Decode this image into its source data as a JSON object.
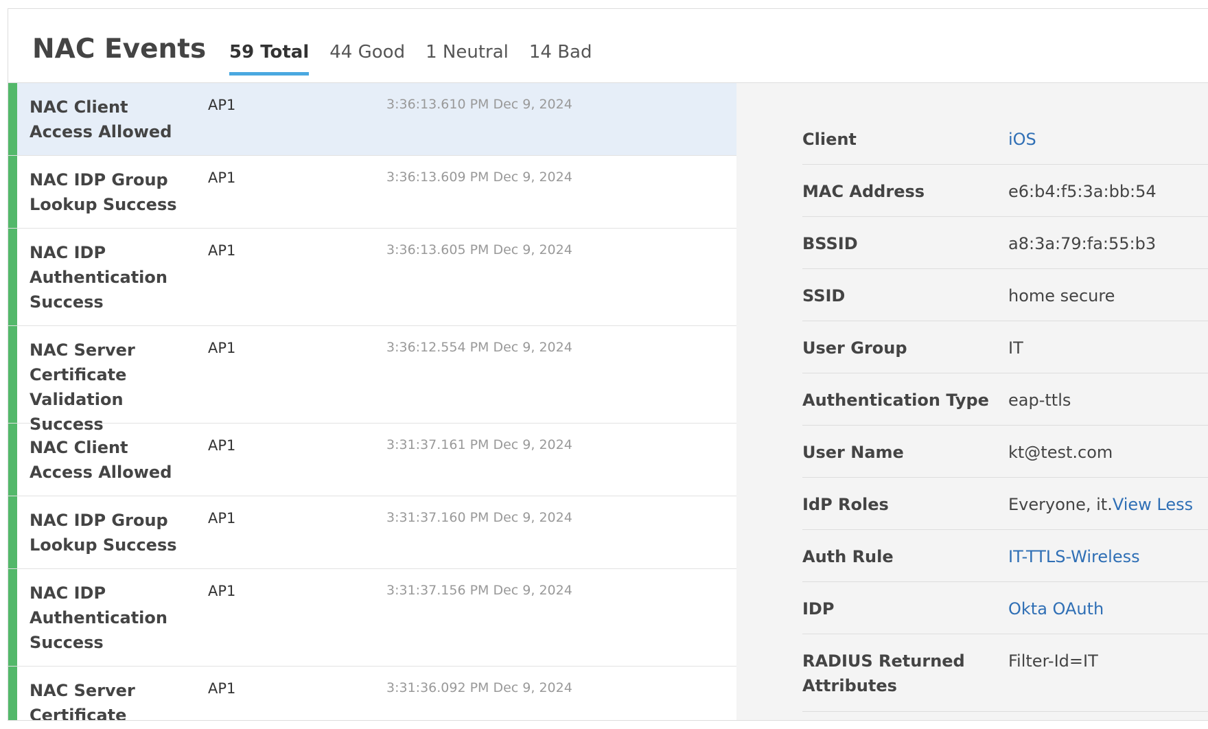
{
  "header": {
    "title": "NAC Events",
    "tabs": [
      "59 Total",
      "44 Good",
      "1 Neutral",
      "14 Bad"
    ]
  },
  "events": [
    {
      "name": "NAC Client Access Allowed",
      "ap": "AP1",
      "time": "3:36:13.610 PM Dec 9, 2024"
    },
    {
      "name": "NAC IDP Group Lookup Success",
      "ap": "AP1",
      "time": "3:36:13.609 PM Dec 9, 2024"
    },
    {
      "name": "NAC IDP Authentication Success",
      "ap": "AP1",
      "time": "3:36:13.605 PM Dec 9, 2024"
    },
    {
      "name": "NAC Server Certificate Validation Success",
      "ap": "AP1",
      "time": "3:36:12.554 PM Dec 9, 2024"
    },
    {
      "name": "NAC Client Access Allowed",
      "ap": "AP1",
      "time": "3:31:37.161 PM Dec 9, 2024"
    },
    {
      "name": "NAC IDP Group Lookup Success",
      "ap": "AP1",
      "time": "3:31:37.160 PM Dec 9, 2024"
    },
    {
      "name": "NAC IDP Authentication Success",
      "ap": "AP1",
      "time": "3:31:37.156 PM Dec 9, 2024"
    },
    {
      "name": "NAC Server Certificate",
      "ap": "AP1",
      "time": "3:31:36.092 PM Dec 9, 2024"
    }
  ],
  "details": [
    {
      "label": "Client",
      "value": "iOS",
      "link": true
    },
    {
      "label": "MAC Address",
      "value": "e6:b4:f5:3a:bb:54"
    },
    {
      "label": "BSSID",
      "value": "a8:3a:79:fa:55:b3"
    },
    {
      "label": "SSID",
      "value": "home secure"
    },
    {
      "label": "User Group",
      "value": "IT"
    },
    {
      "label": "Authentication Type",
      "value": "eap-ttls"
    },
    {
      "label": "User Name",
      "value": "kt@test.com"
    },
    {
      "label": "IdP Roles",
      "value": "Everyone, it.",
      "action": "View Less"
    },
    {
      "label": "Auth Rule",
      "value": "IT-TTLS-Wireless",
      "link": true
    },
    {
      "label": "IDP",
      "value": "Okta OAuth",
      "link": true
    },
    {
      "label": "RADIUS Returned Attributes",
      "value": "Filter-Id=IT"
    }
  ]
}
